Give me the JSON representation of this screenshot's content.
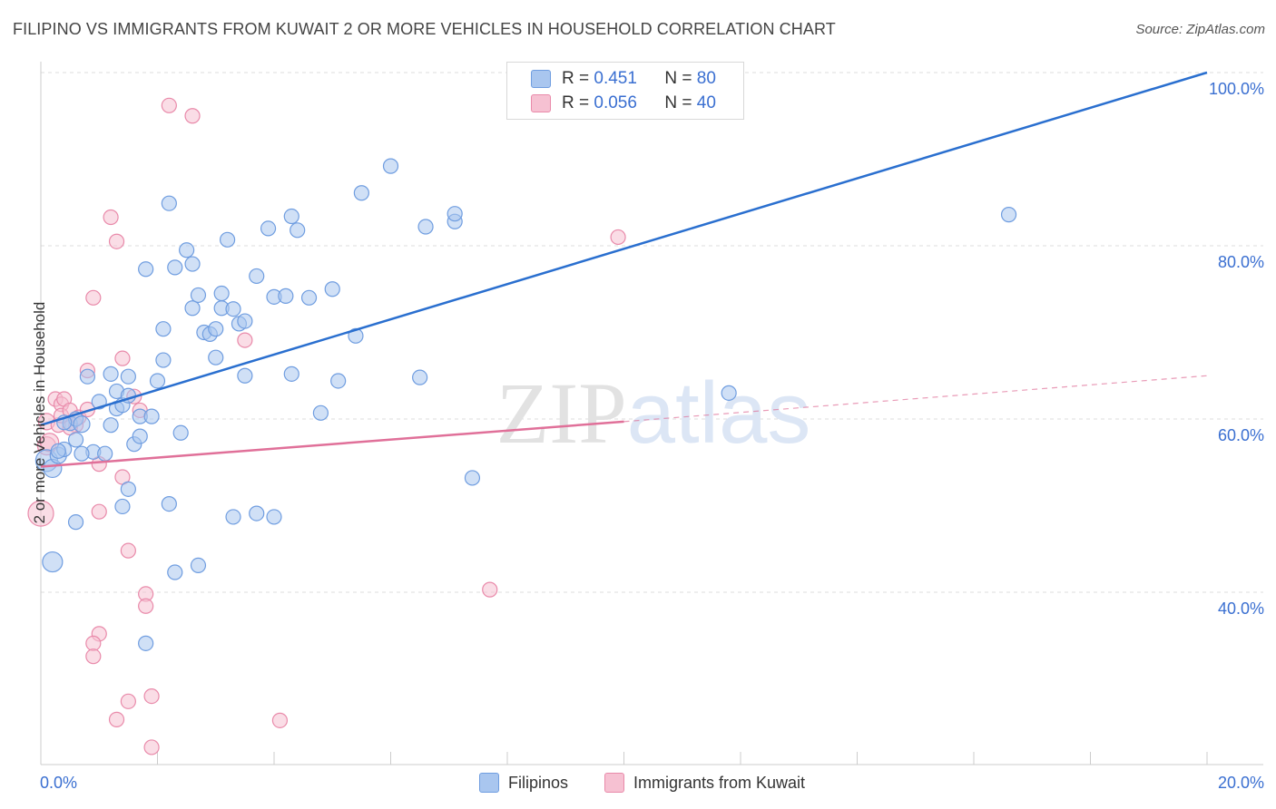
{
  "header": {
    "title": "FILIPINO VS IMMIGRANTS FROM KUWAIT 2 OR MORE VEHICLES IN HOUSEHOLD CORRELATION CHART",
    "source": "Source: ZipAtlas.com"
  },
  "legend": {
    "rows": [
      {
        "r_label": "R =",
        "r_value": "0.451",
        "n_label": "N =",
        "n_value": "80"
      },
      {
        "r_label": "R =",
        "r_value": "0.056",
        "n_label": "N =",
        "n_value": "40"
      }
    ]
  },
  "bottom_legend": [
    "Filipinos",
    "Immigrants from Kuwait"
  ],
  "watermark": "ZIPatlas",
  "colors": {
    "blue_fill": "#a9c6ef",
    "blue_stroke": "#6f9de0",
    "blue_line": "#2a6fcf",
    "pink_fill": "#f6c1d2",
    "pink_stroke": "#e98aaa",
    "pink_line": "#e07099",
    "axis_label": "#3a6fd1",
    "grid": "#dddddd"
  },
  "chart_data": {
    "type": "scatter",
    "title": "FILIPINO VS IMMIGRANTS FROM KUWAIT 2 OR MORE VEHICLES IN HOUSEHOLD CORRELATION CHART",
    "xlabel": "",
    "ylabel": "2 or more Vehicles in Household",
    "xlim": [
      0,
      20
    ],
    "ylim": [
      18,
      102
    ],
    "x_tick_labels": [
      "0.0%",
      "20.0%"
    ],
    "y_ticks": [
      40,
      60,
      80,
      100
    ],
    "y_tick_labels": [
      "40.0%",
      "60.0%",
      "80.0%",
      "100.0%"
    ],
    "grid": true,
    "series": [
      {
        "name": "Filipinos",
        "R": 0.451,
        "N": 80,
        "trend": {
          "x": [
            0.0,
            20.0
          ],
          "y": [
            59.3,
            100.0
          ],
          "dashed_to": null
        },
        "points": [
          [
            0.1,
            55.2,
            12
          ],
          [
            0.2,
            54.3,
            10
          ],
          [
            0.3,
            55.8,
            9
          ],
          [
            0.4,
            56.5,
            8
          ],
          [
            0.5,
            59.5,
            8
          ],
          [
            0.6,
            60.0,
            8
          ],
          [
            0.7,
            59.4,
            9
          ],
          [
            0.6,
            57.6,
            8
          ],
          [
            0.9,
            56.2,
            8
          ],
          [
            1.1,
            56.0,
            8
          ],
          [
            1.2,
            59.3,
            8
          ],
          [
            1.3,
            61.2,
            8
          ],
          [
            0.8,
            64.9,
            8
          ],
          [
            1.4,
            61.6,
            8
          ],
          [
            1.5,
            64.9,
            8
          ],
          [
            1.2,
            65.2,
            8
          ],
          [
            1.3,
            63.2,
            8
          ],
          [
            1.5,
            62.7,
            8
          ],
          [
            1.6,
            57.1,
            8
          ],
          [
            1.7,
            58.0,
            8
          ],
          [
            1.7,
            60.3,
            8
          ],
          [
            1.9,
            60.3,
            8
          ],
          [
            2.0,
            64.4,
            8
          ],
          [
            2.1,
            66.8,
            8
          ],
          [
            2.1,
            70.4,
            8
          ],
          [
            1.8,
            77.3,
            8
          ],
          [
            2.2,
            84.9,
            8
          ],
          [
            2.2,
            50.2,
            8
          ],
          [
            2.3,
            77.5,
            8
          ],
          [
            2.4,
            58.4,
            8
          ],
          [
            2.5,
            79.5,
            8
          ],
          [
            2.6,
            77.9,
            8
          ],
          [
            2.6,
            72.8,
            8
          ],
          [
            2.7,
            74.3,
            8
          ],
          [
            2.8,
            70.0,
            8
          ],
          [
            2.9,
            69.8,
            8
          ],
          [
            3.0,
            67.1,
            8
          ],
          [
            3.0,
            70.4,
            8
          ],
          [
            3.1,
            72.8,
            8
          ],
          [
            3.1,
            74.5,
            8
          ],
          [
            3.2,
            80.7,
            8
          ],
          [
            3.3,
            72.7,
            8
          ],
          [
            3.4,
            71.0,
            8
          ],
          [
            3.5,
            71.3,
            8
          ],
          [
            3.5,
            65.0,
            8
          ],
          [
            3.7,
            76.5,
            8
          ],
          [
            3.9,
            82.0,
            8
          ],
          [
            4.0,
            74.1,
            8
          ],
          [
            4.2,
            74.2,
            8
          ],
          [
            4.3,
            83.4,
            8
          ],
          [
            4.4,
            81.8,
            8
          ],
          [
            4.3,
            65.2,
            8
          ],
          [
            4.6,
            74.0,
            8
          ],
          [
            4.8,
            60.7,
            8
          ],
          [
            5.0,
            75.0,
            8
          ],
          [
            5.1,
            64.4,
            8
          ],
          [
            5.4,
            69.6,
            8
          ],
          [
            5.5,
            86.1,
            8
          ],
          [
            6.0,
            89.2,
            8
          ],
          [
            6.5,
            64.8,
            8
          ],
          [
            6.6,
            82.2,
            8
          ],
          [
            7.1,
            82.8,
            8
          ],
          [
            7.1,
            83.7,
            8
          ],
          [
            7.4,
            53.2,
            8
          ],
          [
            11.8,
            63.0,
            8
          ],
          [
            16.6,
            83.6,
            8
          ],
          [
            4.0,
            48.7,
            8
          ],
          [
            3.7,
            49.1,
            8
          ],
          [
            3.3,
            48.7,
            8
          ],
          [
            2.7,
            43.1,
            8
          ],
          [
            2.3,
            42.3,
            8
          ],
          [
            1.8,
            34.1,
            8
          ],
          [
            1.4,
            49.9,
            8
          ],
          [
            1.5,
            51.9,
            8
          ],
          [
            0.6,
            48.1,
            8
          ],
          [
            0.2,
            43.5,
            11
          ],
          [
            0.4,
            59.6,
            8
          ],
          [
            0.7,
            56.0,
            8
          ],
          [
            1.0,
            62.0,
            8
          ],
          [
            0.3,
            56.3,
            8
          ]
        ]
      },
      {
        "name": "Immigrants from Kuwait",
        "R": 0.056,
        "N": 40,
        "trend": {
          "x": [
            0.0,
            10.0
          ],
          "y": [
            54.5,
            59.7
          ],
          "dashed_to": [
            20.0,
            65.0
          ]
        },
        "points": [
          [
            0.0,
            49.1,
            14
          ],
          [
            0.1,
            56.9,
            10
          ],
          [
            0.15,
            57.3,
            10
          ],
          [
            0.1,
            59.7,
            9
          ],
          [
            0.25,
            62.3,
            8
          ],
          [
            0.3,
            59.3,
            8
          ],
          [
            0.35,
            61.7,
            8
          ],
          [
            0.35,
            60.4,
            8
          ],
          [
            0.4,
            62.3,
            8
          ],
          [
            0.5,
            61.0,
            8
          ],
          [
            0.6,
            59.3,
            8
          ],
          [
            0.65,
            60.2,
            8
          ],
          [
            0.5,
            59.0,
            8
          ],
          [
            0.8,
            61.1,
            8
          ],
          [
            0.8,
            65.6,
            8
          ],
          [
            0.9,
            74.0,
            8
          ],
          [
            1.0,
            54.8,
            8
          ],
          [
            1.0,
            49.3,
            8
          ],
          [
            1.2,
            83.3,
            8
          ],
          [
            1.3,
            80.5,
            8
          ],
          [
            1.4,
            67.0,
            8
          ],
          [
            1.4,
            53.3,
            8
          ],
          [
            1.5,
            44.8,
            8
          ],
          [
            1.6,
            62.6,
            8
          ],
          [
            1.7,
            61.0,
            8
          ],
          [
            1.8,
            39.8,
            8
          ],
          [
            1.8,
            38.4,
            8
          ],
          [
            1.0,
            35.2,
            8
          ],
          [
            0.9,
            34.1,
            8
          ],
          [
            0.9,
            32.6,
            8
          ],
          [
            1.5,
            27.4,
            8
          ],
          [
            1.3,
            25.3,
            8
          ],
          [
            1.9,
            28.0,
            8
          ],
          [
            1.9,
            22.1,
            8
          ],
          [
            2.2,
            96.2,
            8
          ],
          [
            2.6,
            95.0,
            8
          ],
          [
            3.5,
            69.1,
            8
          ],
          [
            4.1,
            25.2,
            8
          ],
          [
            7.7,
            40.3,
            8
          ],
          [
            9.9,
            81.0,
            8
          ]
        ]
      }
    ]
  }
}
